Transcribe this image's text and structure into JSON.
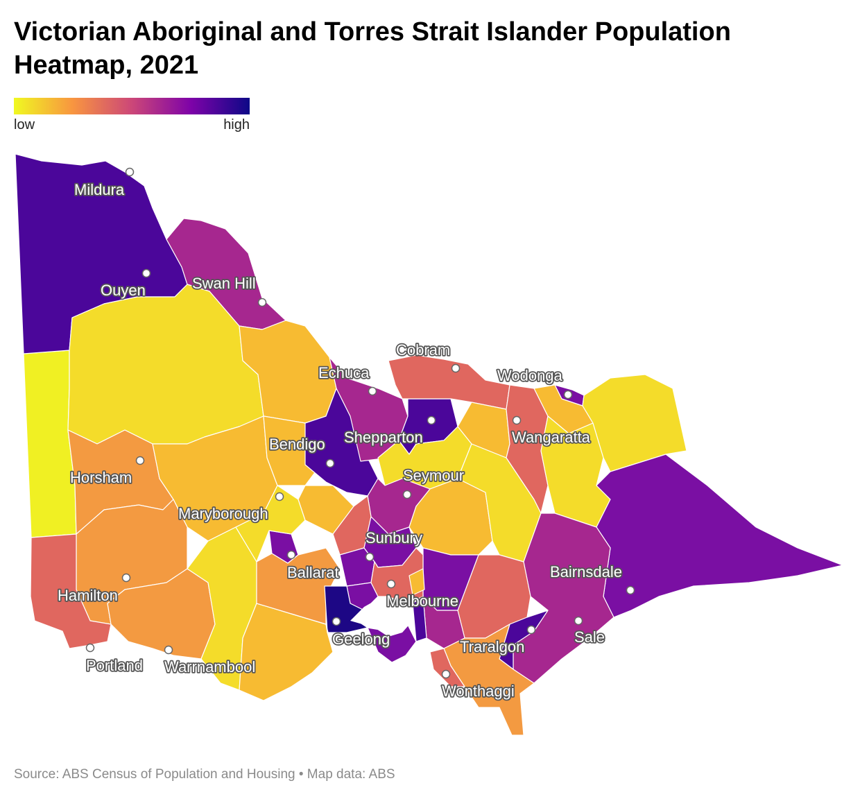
{
  "title": "Victorian Aboriginal and Torres Strait Islander Population Heatmap, 2021",
  "legend": {
    "low_label": "low",
    "high_label": "high",
    "colors": [
      "#f0f921",
      "#f89540",
      "#cc4778",
      "#7e03a8",
      "#0d0887"
    ]
  },
  "palette": {
    "yellow_bright": "#f0f023",
    "yellow": "#f4dc2a",
    "gold": "#f7bb32",
    "orange": "#f39a41",
    "coral": "#e0675f",
    "magenta": "#a6278f",
    "purple": "#7a0fa3",
    "indigo": "#4b069a",
    "navy": "#1d0785",
    "water": "#ffffff"
  },
  "towns": [
    {
      "name": "Mildura"
    },
    {
      "name": "Ouyen"
    },
    {
      "name": "Swan Hill"
    },
    {
      "name": "Echuca"
    },
    {
      "name": "Cobram"
    },
    {
      "name": "Wodonga"
    },
    {
      "name": "Shepparton"
    },
    {
      "name": "Bendigo"
    },
    {
      "name": "Wangaratta"
    },
    {
      "name": "Horsham"
    },
    {
      "name": "Seymour"
    },
    {
      "name": "Maryborough"
    },
    {
      "name": "Sunbury"
    },
    {
      "name": "Ballarat"
    },
    {
      "name": "Bairnsdale"
    },
    {
      "name": "Hamilton"
    },
    {
      "name": "Melbourne"
    },
    {
      "name": "Sale"
    },
    {
      "name": "Geelong"
    },
    {
      "name": "Traralgon"
    },
    {
      "name": "Portland"
    },
    {
      "name": "Warrnambool"
    },
    {
      "name": "Wonthaggi"
    }
  ],
  "source": "Source: ABS Census of Population and Housing • Map data: ABS"
}
